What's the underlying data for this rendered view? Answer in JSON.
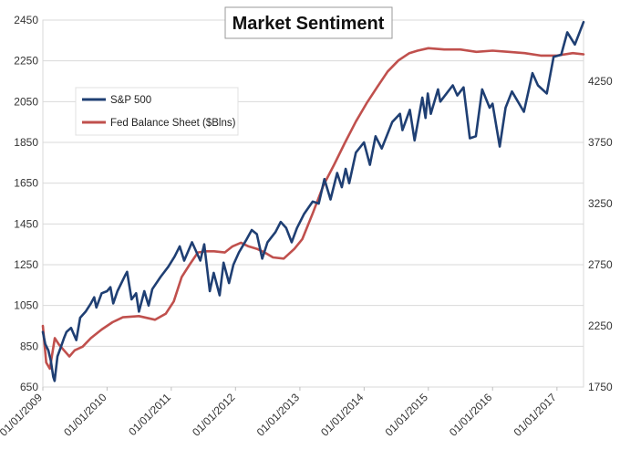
{
  "chart_data": {
    "type": "line",
    "title": "Market Sentiment",
    "xlabel": "",
    "ylabel": "",
    "x_ticks": [
      "01/01/2009",
      "01/01/2010",
      "01/01/2011",
      "01/01/2012",
      "01/01/2013",
      "01/01/2014",
      "01/01/2015",
      "01/01/2016",
      "01/01/2017"
    ],
    "xlim": [
      "2009-01-01",
      "2017-06-01"
    ],
    "left_axis": {
      "ylim": [
        650,
        2450
      ],
      "ticks": [
        650,
        850,
        1050,
        1250,
        1450,
        1650,
        1850,
        2050,
        2250,
        2450
      ]
    },
    "right_axis": {
      "ylim": [
        1750,
        4750
      ],
      "ticks": [
        1750,
        2250,
        2750,
        3250,
        3750,
        4250
      ]
    },
    "grid": true,
    "legend_position": "upper-left",
    "colors": {
      "sp500": "#1f3f73",
      "fed": "#c0504d"
    },
    "series": [
      {
        "name": "S&P 500",
        "axis": "left",
        "points": [
          [
            "2009-01-01",
            920
          ],
          [
            "2009-01-15",
            860
          ],
          [
            "2009-02-01",
            830
          ],
          [
            "2009-02-15",
            780
          ],
          [
            "2009-03-01",
            700
          ],
          [
            "2009-03-09",
            680
          ],
          [
            "2009-03-25",
            800
          ],
          [
            "2009-04-15",
            850
          ],
          [
            "2009-05-01",
            890
          ],
          [
            "2009-05-15",
            920
          ],
          [
            "2009-06-10",
            940
          ],
          [
            "2009-07-10",
            880
          ],
          [
            "2009-08-01",
            990
          ],
          [
            "2009-09-01",
            1020
          ],
          [
            "2009-10-01",
            1060
          ],
          [
            "2009-10-20",
            1090
          ],
          [
            "2009-11-01",
            1040
          ],
          [
            "2009-12-01",
            1110
          ],
          [
            "2010-01-01",
            1120
          ],
          [
            "2010-01-20",
            1140
          ],
          [
            "2010-02-05",
            1060
          ],
          [
            "2010-03-01",
            1120
          ],
          [
            "2010-04-15",
            1200
          ],
          [
            "2010-04-25",
            1215
          ],
          [
            "2010-05-20",
            1080
          ],
          [
            "2010-06-15",
            1110
          ],
          [
            "2010-07-01",
            1020
          ],
          [
            "2010-08-01",
            1120
          ],
          [
            "2010-08-25",
            1050
          ],
          [
            "2010-09-15",
            1130
          ],
          [
            "2010-11-01",
            1190
          ],
          [
            "2010-12-15",
            1240
          ],
          [
            "2011-01-20",
            1290
          ],
          [
            "2011-02-18",
            1340
          ],
          [
            "2011-03-15",
            1270
          ],
          [
            "2011-04-29",
            1360
          ],
          [
            "2011-06-15",
            1270
          ],
          [
            "2011-07-07",
            1350
          ],
          [
            "2011-08-08",
            1120
          ],
          [
            "2011-08-30",
            1210
          ],
          [
            "2011-10-03",
            1100
          ],
          [
            "2011-10-25",
            1260
          ],
          [
            "2011-11-25",
            1160
          ],
          [
            "2011-12-20",
            1250
          ],
          [
            "2012-01-20",
            1310
          ],
          [
            "2012-03-01",
            1370
          ],
          [
            "2012-04-02",
            1420
          ],
          [
            "2012-05-01",
            1400
          ],
          [
            "2012-06-01",
            1280
          ],
          [
            "2012-07-01",
            1360
          ],
          [
            "2012-08-15",
            1410
          ],
          [
            "2012-09-14",
            1460
          ],
          [
            "2012-10-15",
            1430
          ],
          [
            "2012-11-15",
            1360
          ],
          [
            "2012-12-15",
            1430
          ],
          [
            "2013-01-25",
            1500
          ],
          [
            "2013-03-15",
            1560
          ],
          [
            "2013-04-18",
            1550
          ],
          [
            "2013-05-20",
            1670
          ],
          [
            "2013-06-24",
            1570
          ],
          [
            "2013-08-01",
            1700
          ],
          [
            "2013-08-27",
            1630
          ],
          [
            "2013-09-18",
            1720
          ],
          [
            "2013-10-08",
            1650
          ],
          [
            "2013-11-15",
            1800
          ],
          [
            "2013-12-31",
            1850
          ],
          [
            "2014-02-03",
            1740
          ],
          [
            "2014-03-07",
            1880
          ],
          [
            "2014-04-11",
            1820
          ],
          [
            "2014-06-10",
            1950
          ],
          [
            "2014-07-24",
            1990
          ],
          [
            "2014-08-07",
            1910
          ],
          [
            "2014-09-18",
            2010
          ],
          [
            "2014-10-15",
            1860
          ],
          [
            "2014-11-28",
            2070
          ],
          [
            "2014-12-16",
            1970
          ],
          [
            "2014-12-29",
            2090
          ],
          [
            "2015-01-15",
            1990
          ],
          [
            "2015-02-25",
            2110
          ],
          [
            "2015-03-10",
            2050
          ],
          [
            "2015-05-20",
            2130
          ],
          [
            "2015-06-15",
            2080
          ],
          [
            "2015-07-20",
            2120
          ],
          [
            "2015-08-25",
            1870
          ],
          [
            "2015-09-28",
            1880
          ],
          [
            "2015-11-03",
            2110
          ],
          [
            "2015-12-15",
            2020
          ],
          [
            "2016-01-01",
            2040
          ],
          [
            "2016-02-11",
            1830
          ],
          [
            "2016-03-15",
            2020
          ],
          [
            "2016-04-20",
            2100
          ],
          [
            "2016-06-27",
            2000
          ],
          [
            "2016-08-15",
            2190
          ],
          [
            "2016-09-15",
            2130
          ],
          [
            "2016-11-04",
            2090
          ],
          [
            "2016-12-13",
            2270
          ],
          [
            "2017-01-25",
            2280
          ],
          [
            "2017-03-01",
            2390
          ],
          [
            "2017-04-13",
            2330
          ],
          [
            "2017-06-01",
            2440
          ]
        ]
      },
      {
        "name": "Fed Balance Sheet ($Blns)",
        "axis": "right",
        "points": [
          [
            "2009-01-01",
            2250
          ],
          [
            "2009-01-20",
            1950
          ],
          [
            "2009-02-10",
            1900
          ],
          [
            "2009-03-10",
            2150
          ],
          [
            "2009-04-01",
            2100
          ],
          [
            "2009-05-01",
            2050
          ],
          [
            "2009-06-01",
            2000
          ],
          [
            "2009-07-01",
            2050
          ],
          [
            "2009-08-15",
            2080
          ],
          [
            "2009-10-01",
            2150
          ],
          [
            "2009-12-01",
            2220
          ],
          [
            "2010-02-01",
            2280
          ],
          [
            "2010-04-01",
            2320
          ],
          [
            "2010-07-01",
            2330
          ],
          [
            "2010-10-01",
            2300
          ],
          [
            "2010-12-01",
            2350
          ],
          [
            "2011-01-15",
            2450
          ],
          [
            "2011-03-01",
            2650
          ],
          [
            "2011-04-15",
            2750
          ],
          [
            "2011-06-01",
            2850
          ],
          [
            "2011-07-15",
            2860
          ],
          [
            "2011-09-01",
            2860
          ],
          [
            "2011-11-01",
            2850
          ],
          [
            "2011-12-15",
            2900
          ],
          [
            "2012-02-01",
            2930
          ],
          [
            "2012-03-15",
            2900
          ],
          [
            "2012-05-01",
            2880
          ],
          [
            "2012-06-15",
            2850
          ],
          [
            "2012-08-01",
            2810
          ],
          [
            "2012-10-01",
            2800
          ],
          [
            "2012-12-01",
            2880
          ],
          [
            "2013-01-15",
            2960
          ],
          [
            "2013-03-15",
            3170
          ],
          [
            "2013-05-15",
            3400
          ],
          [
            "2013-07-15",
            3570
          ],
          [
            "2013-09-15",
            3750
          ],
          [
            "2013-11-15",
            3920
          ],
          [
            "2014-01-15",
            4070
          ],
          [
            "2014-03-15",
            4200
          ],
          [
            "2014-05-15",
            4330
          ],
          [
            "2014-07-15",
            4420
          ],
          [
            "2014-09-15",
            4480
          ],
          [
            "2014-11-01",
            4500
          ],
          [
            "2015-01-01",
            4520
          ],
          [
            "2015-04-01",
            4510
          ],
          [
            "2015-07-01",
            4510
          ],
          [
            "2015-10-01",
            4490
          ],
          [
            "2016-01-01",
            4500
          ],
          [
            "2016-04-01",
            4490
          ],
          [
            "2016-07-01",
            4480
          ],
          [
            "2016-10-01",
            4460
          ],
          [
            "2017-01-01",
            4460
          ],
          [
            "2017-04-01",
            4480
          ],
          [
            "2017-06-01",
            4470
          ]
        ]
      }
    ]
  }
}
